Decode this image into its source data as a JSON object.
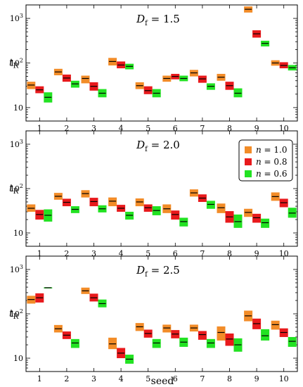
{
  "chart_data": {
    "type": "box",
    "xlabel": "seed",
    "categories": [
      "1",
      "2",
      "3",
      "4",
      "5",
      "6",
      "7",
      "8",
      "9",
      "10"
    ],
    "y_scale": "log",
    "ylim": [
      5,
      2000
    ],
    "ylabel_main": "t",
    "ylabel_sub": "R",
    "yticks": [
      {
        "value": 10,
        "base": "10",
        "exp": ""
      },
      {
        "value": 100,
        "base": "10",
        "exp": "2"
      },
      {
        "value": 1000,
        "base": "10",
        "exp": "3"
      }
    ],
    "series": [
      {
        "name_var": "n",
        "name_rest": " = 1.0",
        "color": "#f28c28"
      },
      {
        "name_var": "n",
        "name_rest": " = 0.8",
        "color": "#e8191c"
      },
      {
        "name_var": "n",
        "name_rest": " = 0.6",
        "color": "#22e222"
      }
    ],
    "legend_position": "top-right of middle panel",
    "panels": [
      {
        "title_var": "D",
        "title_sub": "f",
        "title_rest": " = 1.5",
        "boxes": [
          [
            [
              26,
              38,
              32
            ],
            [
              21,
              30,
              25
            ],
            [
              13,
              22,
              17
            ]
          ],
          [
            [
              53,
              74,
              63
            ],
            [
              38,
              55,
              46
            ],
            [
              28,
              40,
              34
            ]
          ],
          [
            [
              35,
              52,
              45
            ],
            [
              24,
              37,
              30
            ],
            [
              17,
              26,
              21
            ]
          ],
          [
            [
              88,
              130,
              108
            ],
            [
              76,
              108,
              90
            ],
            [
              72,
              96,
              84
            ]
          ],
          [
            [
              26,
              37,
              31
            ],
            [
              20,
              30,
              24
            ],
            [
              17,
              26,
              21
            ]
          ],
          [
            [
              38,
              52,
              45
            ],
            [
              43,
              57,
              50
            ],
            [
              39,
              52,
              45
            ]
          ],
          [
            [
              50,
              70,
              60
            ],
            [
              36,
              52,
              44
            ],
            [
              25,
              35,
              30
            ]
          ],
          [
            [
              40,
              57,
              48
            ],
            [
              25,
              38,
              31
            ],
            [
              17,
              27,
              21
            ]
          ],
          [
            [
              1350,
              1850,
              1600
            ],
            [
              370,
              540,
              450
            ],
            [
              235,
              315,
              275
            ]
          ],
          [
            [
              87,
              115,
              100
            ],
            [
              76,
              104,
              88
            ],
            [
              68,
              90,
              78
            ]
          ]
        ]
      },
      {
        "title_var": "D",
        "title_sub": "f",
        "title_rest": " = 2.0",
        "boxes": [
          [
            [
              30,
              44,
              36
            ],
            [
              20,
              33,
              26
            ],
            [
              18,
              34,
              25
            ]
          ],
          [
            [
              56,
              80,
              67
            ],
            [
              40,
              59,
              49
            ],
            [
              28,
              40,
              34
            ]
          ],
          [
            [
              63,
              92,
              77
            ],
            [
              40,
              62,
              51
            ],
            [
              29,
              42,
              35
            ]
          ],
          [
            [
              40,
              63,
              52
            ],
            [
              30,
              43,
              36
            ],
            [
              20,
              30,
              25
            ]
          ],
          [
            [
              40,
              60,
              50
            ],
            [
              30,
              44,
              37
            ],
            [
              25,
              40,
              32
            ]
          ],
          [
            [
              28,
              44,
              35
            ],
            [
              20,
              32,
              26
            ],
            [
              14,
              22,
              18
            ]
          ],
          [
            [
              66,
              96,
              80
            ],
            [
              50,
              74,
              61
            ],
            [
              35,
              53,
              44
            ]
          ],
          [
            [
              28,
              46,
              37
            ],
            [
              17,
              31,
              23
            ],
            [
              13,
              26,
              18
            ]
          ],
          [
            [
              23,
              35,
              29
            ],
            [
              17,
              27,
              22
            ],
            [
              13,
              21,
              17
            ]
          ],
          [
            [
              53,
              82,
              66
            ],
            [
              38,
              59,
              48
            ],
            [
              22,
              37,
              28
            ]
          ]
        ]
      },
      {
        "title_var": "D",
        "title_sub": "f",
        "title_rest": " = 2.5",
        "boxes": [
          [
            [
              170,
              255,
              210
            ],
            [
              180,
              290,
              230
            ],
            [
              380,
              395,
              388
            ]
          ],
          [
            [
              38,
              56,
              46
            ],
            [
              27,
              40,
              33
            ],
            [
              17,
              27,
              22
            ]
          ],
          [
            [
              280,
              390,
              330
            ],
            [
              190,
              285,
              230
            ],
            [
              140,
              210,
              170
            ]
          ],
          [
            [
              16,
              29,
              21
            ],
            [
              10,
              17,
              13
            ],
            [
              7.5,
              12,
              9.5
            ]
          ],
          [
            [
              41,
              62,
              51
            ],
            [
              29,
              44,
              36
            ],
            [
              17,
              27,
              22
            ]
          ],
          [
            [
              38,
              57,
              48
            ],
            [
              28,
              43,
              35
            ],
            [
              18,
              29,
              23
            ]
          ],
          [
            [
              40,
              57,
              48
            ],
            [
              26,
              41,
              34
            ],
            [
              17,
              27,
              22
            ]
          ],
          [
            [
              25,
              52,
              38
            ],
            [
              19,
              36,
              27
            ],
            [
              14,
              28,
              20
            ]
          ],
          [
            [
              68,
              118,
              90
            ],
            [
              45,
              78,
              60
            ],
            [
              25,
              45,
              32
            ]
          ],
          [
            [
              44,
              70,
              57
            ],
            [
              30,
              47,
              38
            ],
            [
              18,
              30,
              24
            ]
          ]
        ]
      }
    ]
  }
}
